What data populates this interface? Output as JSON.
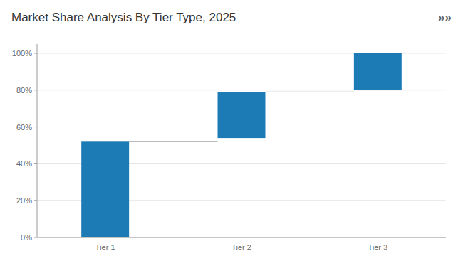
{
  "chart_data": {
    "type": "bar",
    "title": "Market Share Analysis By Tier Type, 2025",
    "annotations": [
      "»»"
    ],
    "categories": [
      "Tier 1",
      "Tier 2",
      "Tier 3"
    ],
    "bottoms": [
      0,
      54,
      80
    ],
    "values": [
      52,
      79,
      100
    ],
    "color": "#1c7ab5",
    "ylim": [
      0,
      105
    ],
    "yticks": [
      {
        "value": 0,
        "label": "0%"
      },
      {
        "value": 20,
        "label": "20%"
      },
      {
        "value": 40,
        "label": "40%"
      },
      {
        "value": 60,
        "label": "60%"
      },
      {
        "value": 80,
        "label": "80%"
      },
      {
        "value": 100,
        "label": "100%"
      }
    ],
    "grid": true
  }
}
